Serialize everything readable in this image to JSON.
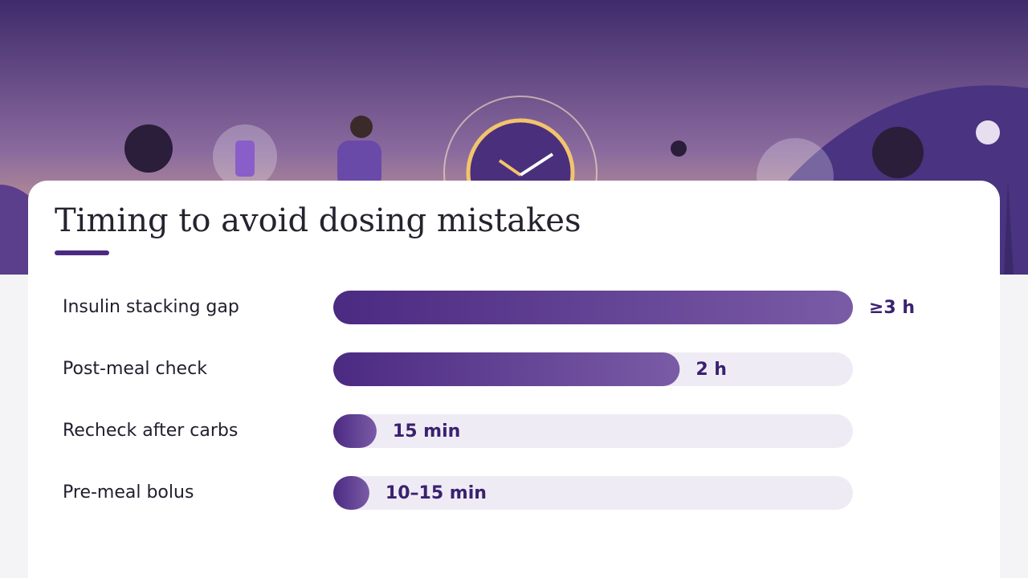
{
  "chart_data": {
    "type": "bar",
    "orientation": "horizontal",
    "title": "Timing to avoid dosing mistakes",
    "categories": [
      "Insulin stacking gap",
      "Post-meal check",
      "Recheck after carbs",
      "Pre-meal bolus"
    ],
    "values": [
      180,
      120,
      15,
      12.5
    ],
    "value_labels": [
      "≥3 h",
      "2 h",
      "15 min",
      "10–15 min"
    ],
    "xlim": [
      0,
      180
    ],
    "color": "#4b2a82"
  }
}
